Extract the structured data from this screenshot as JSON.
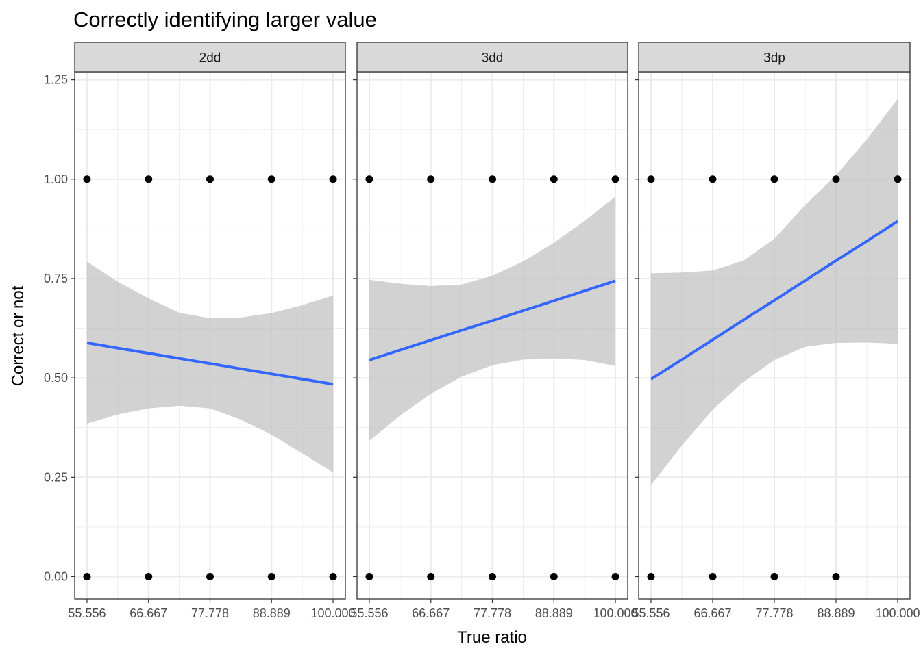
{
  "chart_data": {
    "type": "scatter",
    "title": "Correctly identifying larger value",
    "xlabel": "True ratio",
    "ylabel": "Correct or not",
    "x_ticks": [
      55.556,
      66.667,
      77.778,
      88.889,
      100.0
    ],
    "x_tick_labels": [
      "55.556",
      "66.667",
      "77.778",
      "88.889",
      "100.000"
    ],
    "y_ticks": [
      0,
      0.25,
      0.5,
      0.75,
      1.0,
      1.25
    ],
    "y_tick_labels": [
      "0.00",
      "0.25",
      "0.50",
      "0.75",
      "1.00",
      "1.25"
    ],
    "xlim": [
      53.333,
      102.222
    ],
    "ylim": [
      -0.056,
      1.27
    ],
    "grid": true,
    "colors": {
      "points": "#000000",
      "fit_line": "#3366FF",
      "ribbon": "#BFBFBF",
      "strip_bg": "#D9D9D9",
      "grid": "#EBEBEB",
      "panel_border": "#333333"
    },
    "facets": [
      {
        "label": "2dd",
        "points": [
          {
            "x": 55.556,
            "y": 1
          },
          {
            "x": 66.667,
            "y": 1
          },
          {
            "x": 77.778,
            "y": 1
          },
          {
            "x": 88.889,
            "y": 1
          },
          {
            "x": 100.0,
            "y": 1
          },
          {
            "x": 55.556,
            "y": 0
          },
          {
            "x": 66.667,
            "y": 0
          },
          {
            "x": 77.778,
            "y": 0
          },
          {
            "x": 88.889,
            "y": 0
          },
          {
            "x": 100.0,
            "y": 0
          }
        ],
        "fit": {
          "x": [
            55.556,
            61.111,
            66.667,
            72.222,
            77.778,
            83.333,
            88.889,
            94.444,
            100.0
          ],
          "y": [
            0.588,
            0.575,
            0.562,
            0.549,
            0.536,
            0.523,
            0.51,
            0.497,
            0.484
          ],
          "lower": [
            0.385,
            0.408,
            0.423,
            0.43,
            0.423,
            0.395,
            0.357,
            0.31,
            0.262
          ],
          "upper": [
            0.792,
            0.742,
            0.7,
            0.664,
            0.65,
            0.652,
            0.663,
            0.683,
            0.707
          ]
        }
      },
      {
        "label": "3dd",
        "points": [
          {
            "x": 55.556,
            "y": 1
          },
          {
            "x": 66.667,
            "y": 1
          },
          {
            "x": 77.778,
            "y": 1
          },
          {
            "x": 88.889,
            "y": 1
          },
          {
            "x": 100.0,
            "y": 1
          },
          {
            "x": 55.556,
            "y": 0
          },
          {
            "x": 66.667,
            "y": 0
          },
          {
            "x": 77.778,
            "y": 0
          },
          {
            "x": 88.889,
            "y": 0
          },
          {
            "x": 100.0,
            "y": 0
          }
        ],
        "fit": {
          "x": [
            55.556,
            61.111,
            66.667,
            72.222,
            77.778,
            83.333,
            88.889,
            94.444,
            100.0
          ],
          "y": [
            0.545,
            0.57,
            0.595,
            0.62,
            0.644,
            0.669,
            0.694,
            0.719,
            0.744
          ],
          "lower": [
            0.342,
            0.405,
            0.46,
            0.503,
            0.532,
            0.546,
            0.549,
            0.545,
            0.53
          ],
          "upper": [
            0.747,
            0.737,
            0.731,
            0.735,
            0.757,
            0.793,
            0.84,
            0.895,
            0.956
          ]
        }
      },
      {
        "label": "3dp",
        "points": [
          {
            "x": 55.556,
            "y": 1
          },
          {
            "x": 66.667,
            "y": 1
          },
          {
            "x": 77.778,
            "y": 1
          },
          {
            "x": 88.889,
            "y": 1
          },
          {
            "x": 100.0,
            "y": 1
          },
          {
            "x": 55.556,
            "y": 0
          },
          {
            "x": 66.667,
            "y": 0
          },
          {
            "x": 77.778,
            "y": 0
          },
          {
            "x": 88.889,
            "y": 0
          }
        ],
        "fit": {
          "x": [
            55.556,
            61.111,
            66.667,
            72.222,
            77.778,
            83.333,
            88.889,
            94.444,
            100.0
          ],
          "y": [
            0.497,
            0.546,
            0.596,
            0.646,
            0.695,
            0.745,
            0.795,
            0.844,
            0.894
          ],
          "lower": [
            0.23,
            0.33,
            0.42,
            0.49,
            0.545,
            0.578,
            0.588,
            0.589,
            0.586
          ],
          "upper": [
            0.763,
            0.765,
            0.77,
            0.795,
            0.85,
            0.935,
            1.01,
            1.1,
            1.202
          ]
        }
      }
    ]
  }
}
